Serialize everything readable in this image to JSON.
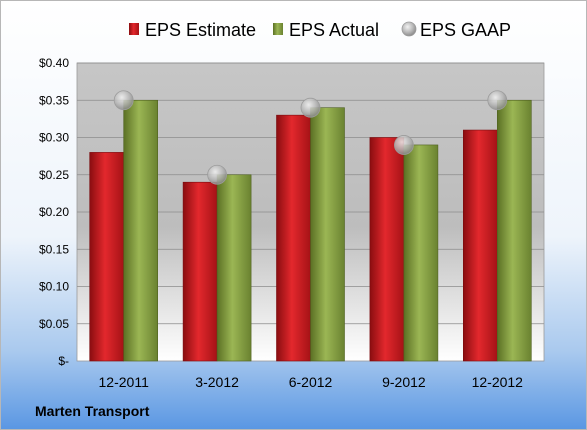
{
  "company": "Marten Transport",
  "chart_data": {
    "type": "bar",
    "categories": [
      "12-2011",
      "3-2012",
      "6-2012",
      "9-2012",
      "12-2012"
    ],
    "series": [
      {
        "name": "EPS Estimate",
        "type": "bar",
        "color": "#cc1a1f",
        "values": [
          0.28,
          0.24,
          0.33,
          0.3,
          0.31
        ]
      },
      {
        "name": "EPS Actual",
        "type": "bar",
        "color": "#7f9a3a",
        "values": [
          0.35,
          0.25,
          0.34,
          0.29,
          0.35
        ]
      },
      {
        "name": "EPS GAAP",
        "type": "scatter",
        "color": "#a9a9a9",
        "values": [
          0.35,
          0.25,
          0.34,
          0.29,
          0.35
        ]
      }
    ],
    "ylim": [
      0,
      0.4
    ],
    "yticks": [
      0,
      0.05,
      0.1,
      0.15,
      0.2,
      0.25,
      0.3,
      0.35,
      0.4
    ],
    "ytick_labels": [
      "$-",
      "$0.05",
      "$0.10",
      "$0.15",
      "$0.20",
      "$0.25",
      "$0.30",
      "$0.35",
      "$0.40"
    ],
    "grid": true,
    "legend": "top"
  }
}
